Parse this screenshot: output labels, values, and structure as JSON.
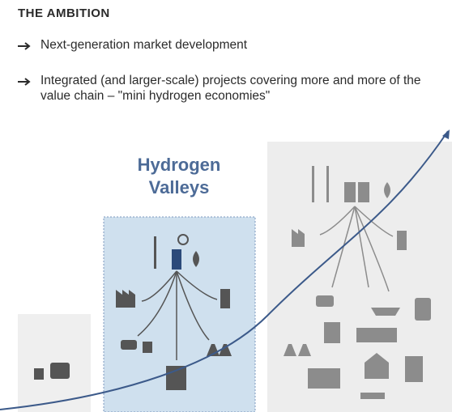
{
  "header": {
    "title": "THE AMBITION"
  },
  "bullets": [
    "Next-generation market development",
    "Integrated (and larger-scale) projects covering more and more of the value chain – \"mini hydrogen economies\""
  ],
  "stages": [
    {
      "label": "Hydrogen Valleys"
    }
  ]
}
